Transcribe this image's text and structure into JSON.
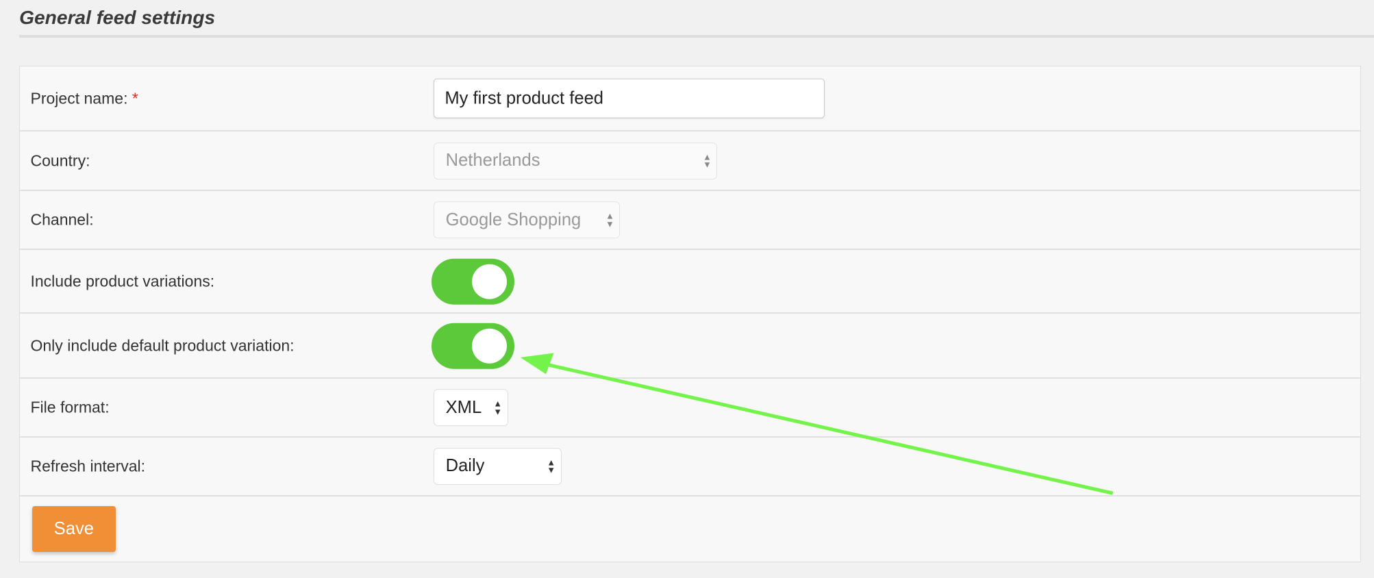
{
  "section_title": "General feed settings",
  "fields": {
    "project_name": {
      "label": "Project name:",
      "required_marker": "*",
      "value": "My first product feed"
    },
    "country": {
      "label": "Country:",
      "value": "Netherlands",
      "disabled": true
    },
    "channel": {
      "label": "Channel:",
      "value": "Google Shopping",
      "disabled": true
    },
    "include_variations": {
      "label": "Include product variations:",
      "on": true
    },
    "default_variation": {
      "label": "Only include default product variation:",
      "on": true
    },
    "file_format": {
      "label": "File format:",
      "value": "XML"
    },
    "refresh_interval": {
      "label": "Refresh interval:",
      "value": "Daily"
    }
  },
  "save_label": "Save",
  "colors": {
    "toggle_on": "#5cc93b",
    "save_button": "#f08f36",
    "annotation_arrow": "#74f34a",
    "required": "#e2261c"
  }
}
